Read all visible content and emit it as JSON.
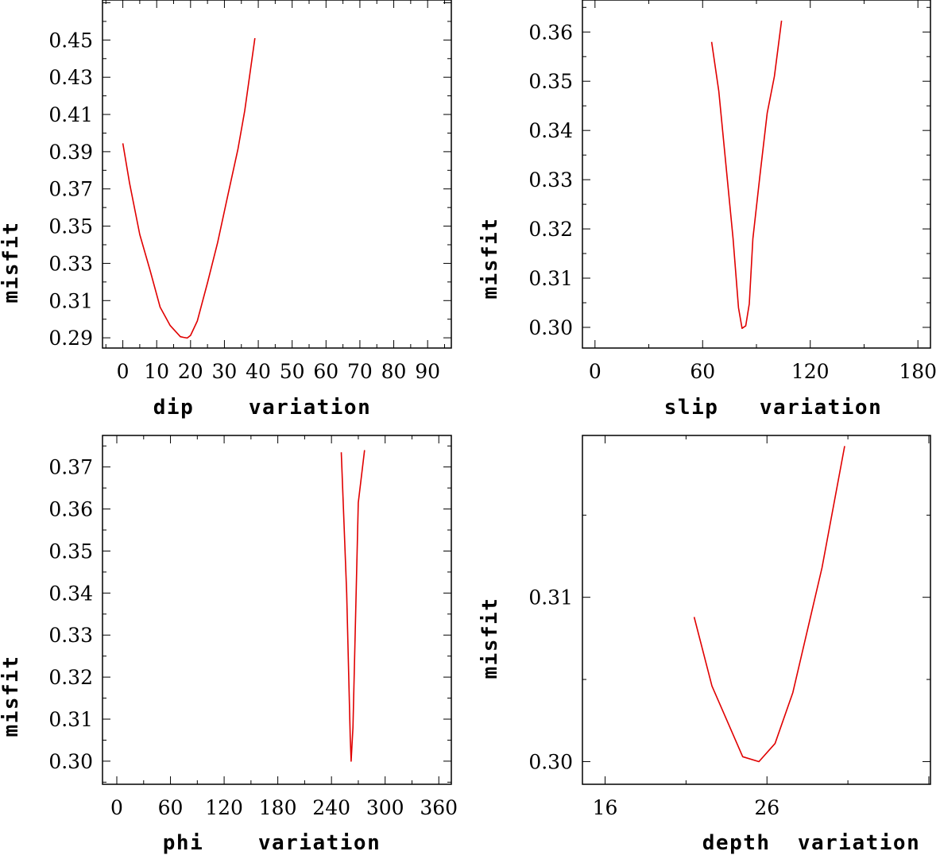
{
  "chart_data": [
    {
      "type": "line",
      "ylabel": "misfit",
      "xlabel": "dip    variation",
      "xlim": [
        -6,
        97
      ],
      "ylim": [
        0.2845,
        0.4715
      ],
      "xticks": [
        0,
        10,
        20,
        30,
        40,
        50,
        60,
        70,
        80,
        90
      ],
      "xtick_labels": [
        "0",
        "10",
        "20",
        "30",
        "40",
        "50",
        "60",
        "70",
        "80",
        "90"
      ],
      "yticks": [
        0.29,
        0.31,
        0.33,
        0.35,
        0.37,
        0.39,
        0.41,
        0.43,
        0.45
      ],
      "ytick_labels": [
        "0.29",
        "0.31",
        "0.33",
        "0.35",
        "0.37",
        "0.39",
        "0.41",
        "0.43",
        "0.45"
      ],
      "series": [
        {
          "name": "dip",
          "color": "#e00000",
          "x": [
            0,
            2,
            5,
            8,
            11,
            14,
            17,
            18,
            19,
            20,
            22,
            25,
            28,
            31,
            34,
            36,
            39
          ],
          "y": [
            0.3945,
            0.373,
            0.3455,
            0.3265,
            0.3065,
            0.2966,
            0.2906,
            0.2902,
            0.2899,
            0.2913,
            0.299,
            0.3195,
            0.3412,
            0.3665,
            0.3915,
            0.412,
            0.451
          ]
        }
      ]
    },
    {
      "type": "line",
      "ylabel": "misfit",
      "xlabel": "slip   variation",
      "xlim": [
        -7,
        187
      ],
      "ylim": [
        0.2958,
        0.3665
      ],
      "xticks": [
        0,
        60,
        120,
        180
      ],
      "xtick_labels": [
        "0",
        "60",
        "120",
        "180"
      ],
      "yticks": [
        0.3,
        0.31,
        0.32,
        0.33,
        0.34,
        0.35,
        0.36
      ],
      "ytick_labels": [
        "0.30",
        "0.31",
        "0.32",
        "0.33",
        "0.34",
        "0.35",
        "0.36"
      ],
      "series": [
        {
          "name": "slip",
          "color": "#e00000",
          "x": [
            65,
            69,
            73,
            77,
            80,
            82,
            84,
            86,
            88,
            92,
            96,
            100,
            104
          ],
          "y": [
            0.358,
            0.348,
            0.333,
            0.318,
            0.304,
            0.2998,
            0.3003,
            0.3048,
            0.318,
            0.331,
            0.3435,
            0.351,
            0.3623
          ]
        }
      ]
    },
    {
      "type": "line",
      "ylabel": "misfit",
      "xlabel": "phi    variation",
      "xlim": [
        -16,
        374
      ],
      "ylim": [
        0.2945,
        0.3775
      ],
      "xticks": [
        0,
        60,
        120,
        180,
        240,
        300,
        360
      ],
      "xtick_labels": [
        "0",
        "60",
        "120",
        "180",
        "240",
        "300",
        "360"
      ],
      "yticks": [
        0.3,
        0.31,
        0.32,
        0.33,
        0.34,
        0.35,
        0.36,
        0.37
      ],
      "ytick_labels": [
        "0.30",
        "0.31",
        "0.32",
        "0.33",
        "0.34",
        "0.35",
        "0.36",
        "0.37"
      ],
      "series": [
        {
          "name": "phi",
          "color": "#e00000",
          "x": [
            251,
            257,
            261,
            262,
            264,
            270,
            277
          ],
          "y": [
            0.3735,
            0.34,
            0.3055,
            0.3,
            0.308,
            0.3615,
            0.374
          ]
        }
      ]
    },
    {
      "type": "line",
      "ylabel": "misfit",
      "xlabel": "depth  variation",
      "xlim": [
        14.6,
        36.1
      ],
      "ylim": [
        0.29862,
        0.31985
      ],
      "xticks": [
        16,
        26
      ],
      "xtick_labels": [
        "16",
        "26"
      ],
      "yticks": [
        0.3,
        0.31
      ],
      "ytick_labels": [
        "0.30",
        "0.31"
      ],
      "series": [
        {
          "name": "depth",
          "color": "#e00000",
          "x": [
            21.5,
            22.6,
            24.5,
            25.5,
            26.5,
            27.6,
            29.4,
            30.8
          ],
          "y": [
            0.3088,
            0.3046,
            0.3003,
            0.3,
            0.3011,
            0.3042,
            0.3118,
            0.3192
          ]
        }
      ]
    }
  ]
}
